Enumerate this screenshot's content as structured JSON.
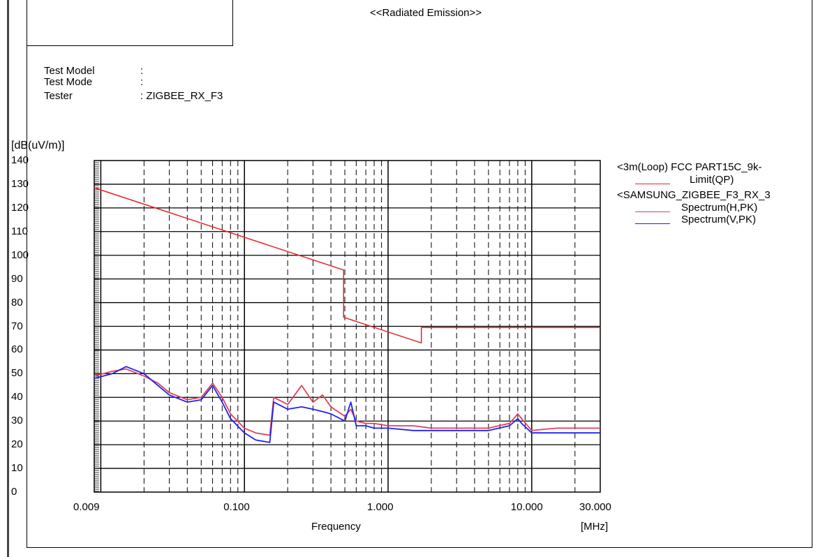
{
  "report": {
    "title": "<<Radiated Emission>>",
    "fields": [
      {
        "label": "Test Model",
        "value": ":"
      },
      {
        "label": "Test Mode",
        "value": ":"
      },
      {
        "label": "Tester",
        "value": ": ZIGBEE_RX_F3"
      }
    ]
  },
  "chart_data": {
    "type": "line",
    "ylabel": "[dB(uV/m)]",
    "xlabel": "Frequency",
    "xunit": "[MHz]",
    "xscale": "log",
    "xlim": [
      0.009,
      30
    ],
    "ylim": [
      0,
      140
    ],
    "yticks": [
      "140",
      "130",
      "120",
      "110",
      "100",
      "90",
      "80",
      "70",
      "60",
      "50",
      "40",
      "30",
      "20",
      "10",
      "0"
    ],
    "xticks": [
      {
        "value": 0.009,
        "label": "0.009"
      },
      {
        "value": 0.1,
        "label": "0.100"
      },
      {
        "value": 1,
        "label": "1.000"
      },
      {
        "value": 10,
        "label": "10.000"
      },
      {
        "value": 30,
        "label": "30.000"
      }
    ],
    "grid": true,
    "legend_position": "right",
    "legend_header_1": "<3m(Loop) FCC PART15C_9k-",
    "legend_header_2": "<SAMSUNG_ZIGBEE_F3_RX_3",
    "series": [
      {
        "name": "Limit(QP)",
        "color": "#e8202a",
        "x": [
          0.009,
          0.49,
          0.49,
          1.705,
          1.705,
          30
        ],
        "y": [
          128.5,
          93.8,
          73.8,
          63.0,
          69.5,
          69.5
        ]
      },
      {
        "name": "Spectrum(H,PK)",
        "color": "#e0405a",
        "x": [
          0.009,
          0.012,
          0.015,
          0.02,
          0.025,
          0.03,
          0.04,
          0.05,
          0.06,
          0.07,
          0.08,
          0.1,
          0.12,
          0.15,
          0.16,
          0.2,
          0.25,
          0.3,
          0.35,
          0.4,
          0.5,
          0.55,
          0.6,
          0.7,
          0.8,
          1.0,
          1.5,
          2,
          3,
          5,
          7,
          8,
          8.5,
          10,
          15,
          20,
          30
        ],
        "y": [
          49,
          51,
          52,
          49,
          46,
          42,
          39,
          40,
          46,
          40,
          33,
          27,
          25,
          24,
          40,
          37,
          45,
          38,
          41,
          36,
          32,
          35,
          30,
          29,
          29,
          28,
          28,
          27,
          27,
          27,
          29,
          33,
          31,
          26,
          27,
          27,
          27
        ]
      },
      {
        "name": "Spectrum(V,PK)",
        "color": "#1f22f0",
        "x": [
          0.009,
          0.012,
          0.015,
          0.02,
          0.025,
          0.03,
          0.04,
          0.05,
          0.06,
          0.07,
          0.08,
          0.1,
          0.12,
          0.15,
          0.16,
          0.2,
          0.25,
          0.3,
          0.35,
          0.4,
          0.5,
          0.55,
          0.6,
          0.7,
          0.8,
          1.0,
          1.5,
          2,
          3,
          5,
          7,
          8,
          8.5,
          10,
          15,
          20,
          30
        ],
        "y": [
          48,
          50,
          53,
          50,
          45,
          41,
          38,
          39,
          45,
          38,
          31,
          25,
          22,
          21,
          38,
          35,
          36,
          35,
          34,
          33,
          30,
          38,
          28,
          28,
          27,
          27,
          26,
          26,
          26,
          26,
          28,
          31,
          29,
          25,
          25,
          25,
          25
        ]
      }
    ]
  }
}
